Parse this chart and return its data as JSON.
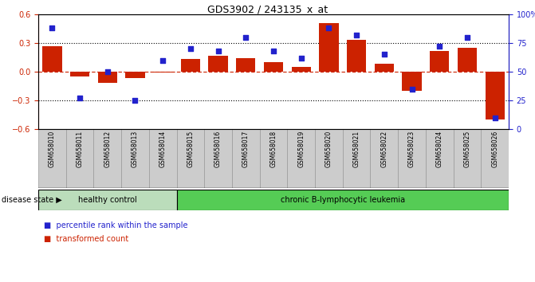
{
  "title": "GDS3902 / 243135_x_at",
  "samples": [
    "GSM658010",
    "GSM658011",
    "GSM658012",
    "GSM658013",
    "GSM658014",
    "GSM658015",
    "GSM658016",
    "GSM658017",
    "GSM658018",
    "GSM658019",
    "GSM658020",
    "GSM658021",
    "GSM658022",
    "GSM658023",
    "GSM658024",
    "GSM658025",
    "GSM658026"
  ],
  "bar_values": [
    0.27,
    -0.05,
    -0.12,
    -0.07,
    -0.01,
    0.13,
    0.17,
    0.14,
    0.1,
    0.05,
    0.51,
    0.33,
    0.08,
    -0.2,
    0.22,
    0.25,
    -0.5
  ],
  "dot_values": [
    88,
    27,
    50,
    25,
    60,
    70,
    68,
    80,
    68,
    62,
    88,
    82,
    65,
    35,
    72,
    80,
    10
  ],
  "bar_color": "#cc2200",
  "dot_color": "#2222cc",
  "ylim_left": [
    -0.6,
    0.6
  ],
  "ylim_right": [
    0,
    100
  ],
  "yticks_left": [
    -0.6,
    -0.3,
    0.0,
    0.3,
    0.6
  ],
  "yticks_right": [
    0,
    25,
    50,
    75,
    100
  ],
  "ytick_labels_right": [
    "0",
    "25",
    "50",
    "75",
    "100%"
  ],
  "hlines": [
    0.3,
    -0.3
  ],
  "group1_label": "healthy control",
  "group2_label": "chronic B-lymphocytic leukemia",
  "group1_n": 5,
  "group2_n": 12,
  "group1_color": "#bbddbb",
  "group2_color": "#55cc55",
  "disease_state_label": "disease state",
  "legend_bar_label": "transformed count",
  "legend_dot_label": "percentile rank within the sample",
  "cell_bg_color": "#cccccc",
  "cell_edge_color": "#999999"
}
